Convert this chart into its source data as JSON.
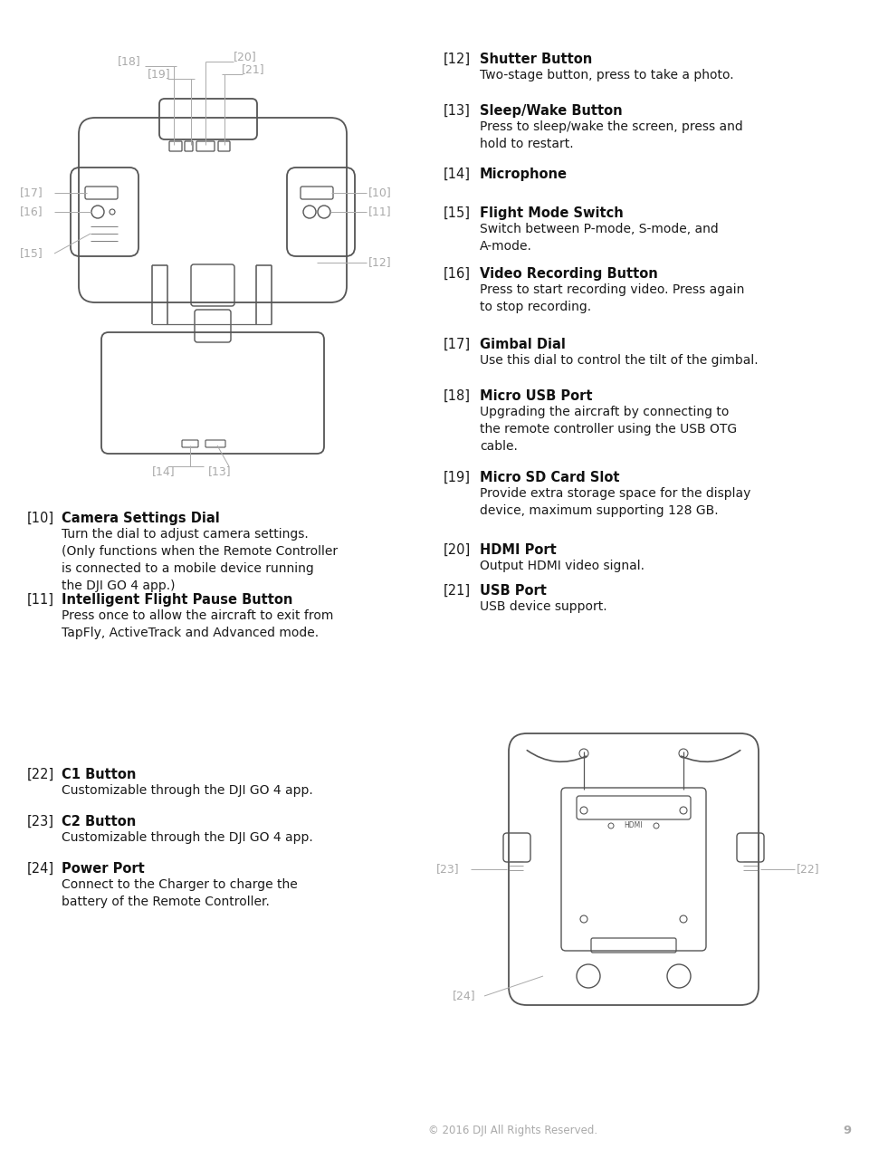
{
  "bg_color": "#ffffff",
  "footer_text": "© 2016 DJI All Rights Reserved.",
  "page_number": "9",
  "right_items": [
    {
      "num": "12",
      "title": "Shutter Button",
      "desc": "Two-stage button, press to take a photo."
    },
    {
      "num": "13",
      "title": "Sleep/Wake Button",
      "desc": "Press to sleep/wake the screen, press and\nhold to restart."
    },
    {
      "num": "14",
      "title": "Microphone",
      "desc": ""
    },
    {
      "num": "15",
      "title": "Flight Mode Switch",
      "desc": "Switch between P-mode, S-mode, and\nA-mode."
    },
    {
      "num": "16",
      "title": "Video Recording Button",
      "desc": "Press to start recording video. Press again\nto stop recording."
    },
    {
      "num": "17",
      "title": "Gimbal Dial",
      "desc": "Use this dial to control the tilt of the gimbal."
    },
    {
      "num": "18",
      "title": "Micro USB Port",
      "desc": "Upgrading the aircraft by connecting to\nthe remote controller using the USB OTG\ncable."
    },
    {
      "num": "19",
      "title": "Micro SD Card Slot",
      "desc": "Provide extra storage space for the display\ndevice, maximum supporting 128 GB."
    },
    {
      "num": "20",
      "title": "HDMI Port",
      "desc": "Output HDMI video signal."
    },
    {
      "num": "21",
      "title": "USB Port",
      "desc": "USB device support."
    }
  ],
  "mid_left_items": [
    {
      "num": "10",
      "title": "Camera Settings Dial",
      "desc": "Turn the dial to adjust camera settings.\n(Only functions when the Remote Controller\nis connected to a mobile device running\nthe DJI GO 4 app.)"
    },
    {
      "num": "11",
      "title": "Intelligent Flight Pause Button",
      "desc": "Press once to allow the aircraft to exit from\nTapFly, ActiveTrack and Advanced mode."
    }
  ],
  "bot_left_items": [
    {
      "num": "22",
      "title": "C1 Button",
      "desc": "Customizable through the DJI GO 4 app."
    },
    {
      "num": "23",
      "title": "C2 Button",
      "desc": "Customizable through the DJI GO 4 app."
    },
    {
      "num": "24",
      "title": "Power Port",
      "desc": "Connect to the Charger to charge the\nbattery of the Remote Controller."
    }
  ]
}
